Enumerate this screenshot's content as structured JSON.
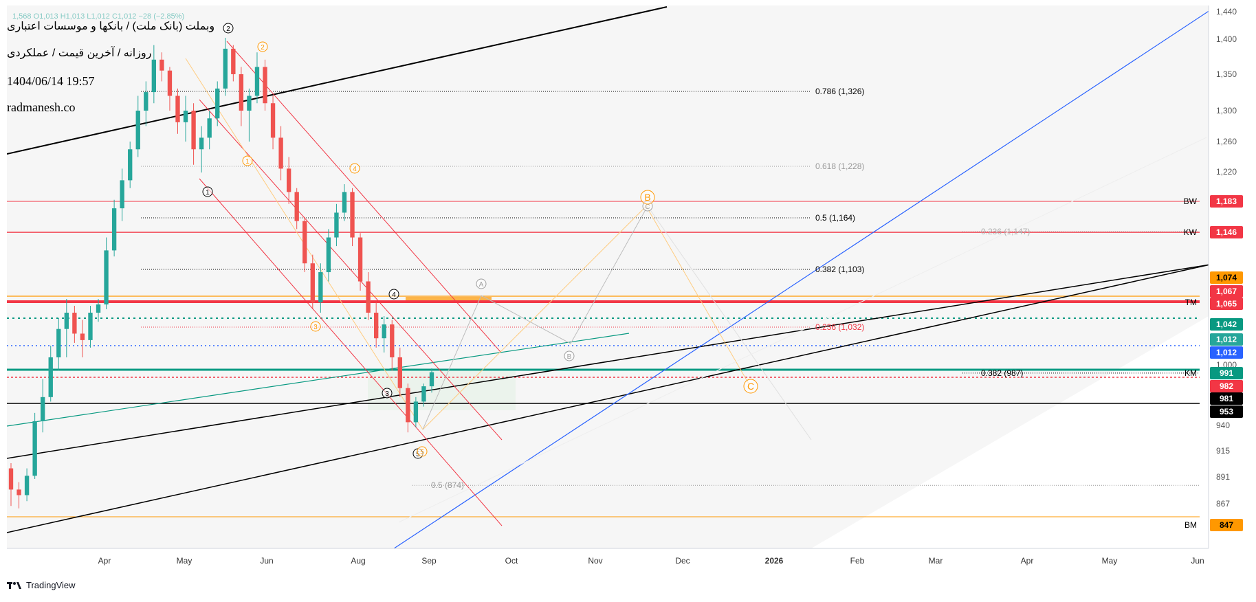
{
  "header": {
    "title": "وبملت (بانک ملت) / بانکها و موسسات اعتباری",
    "subtitle": "روزانه / آخرین قیمت / عملکردی",
    "datetime": "1404/06/14 19:57",
    "site": "radmanesh.co",
    "ohlc_faded": "1,568 O1,013 H1,013 L1,012 C1,012 −28 (−2.85%)"
  },
  "footer": {
    "brand": "TradingView"
  },
  "colors": {
    "up": "#26a69a",
    "down": "#ef5350",
    "orange": "#ff9800",
    "blue": "#2962ff",
    "teal": "#089981",
    "red": "#f23645",
    "black": "#000000"
  },
  "chart_data": {
    "type": "candlestick",
    "y_scale": "log",
    "ylim": [
      847,
      1440
    ],
    "price_ticks": [
      "1,440",
      "1,400",
      "1,350",
      "1,300",
      "1,260",
      "1,220",
      "1,000",
      "940",
      "915",
      "891",
      "867"
    ],
    "time_ticks": [
      "Apr",
      "May",
      "Jun",
      "Aug",
      "Sep",
      "Oct",
      "Nov",
      "Dec",
      "2026",
      "Feb",
      "Mar",
      "Apr",
      "May",
      "Jun"
    ],
    "price_badges": [
      {
        "label": "1,183",
        "color": "#f23645",
        "text": "#ffffff"
      },
      {
        "label": "1,146",
        "color": "#f23645",
        "text": "#ffffff"
      },
      {
        "label": "1,074",
        "color": "#ff9800",
        "text": "#000000"
      },
      {
        "label": "1,067",
        "color": "#f23645",
        "text": "#ffffff"
      },
      {
        "label": "1,065",
        "color": "#f23645",
        "text": "#ffffff"
      },
      {
        "label": "1,042",
        "color": "#089981",
        "text": "#ffffff"
      },
      {
        "label": "1,012",
        "color": "#26a69a",
        "text": "#ffffff"
      },
      {
        "label": "1,012",
        "color": "#2962ff",
        "text": "#ffffff"
      },
      {
        "label": "991",
        "color": "#089981",
        "text": "#ffffff"
      },
      {
        "label": "982",
        "color": "#f23645",
        "text": "#ffffff"
      },
      {
        "label": "981",
        "color": "#000000",
        "text": "#ffffff"
      },
      {
        "label": "953",
        "color": "#000000",
        "text": "#ffffff"
      },
      {
        "label": "847",
        "color": "#ff9800",
        "text": "#000000"
      }
    ],
    "level_labels": [
      {
        "label": "BW",
        "price": 1183
      },
      {
        "label": "KW",
        "price": 1146
      },
      {
        "label": "TM",
        "price": 1065
      },
      {
        "label": "KM",
        "price": 991
      },
      {
        "label": "BM",
        "price": 847
      }
    ],
    "fib_labels": [
      {
        "label": "0.786 (1,326)",
        "price": 1326,
        "color": "#000000"
      },
      {
        "label": "0.618 (1,228)",
        "price": 1228,
        "color": "#999999"
      },
      {
        "label": "0.5 (1,164)",
        "price": 1164,
        "color": "#000000"
      },
      {
        "label": "0.382 (1,103)",
        "price": 1103,
        "color": "#000000"
      },
      {
        "label": "0.236 (1,032)",
        "price": 1032,
        "color": "#f23645"
      },
      {
        "label": "0.236 (1,147)",
        "price": 1147,
        "color": "#b0b0b0"
      },
      {
        "label": "0.382 (987)",
        "price": 987,
        "color": "#000000"
      },
      {
        "label": "0.5 (874)",
        "price": 874,
        "color": "#999999"
      }
    ],
    "wave_labels": [
      "1",
      "2",
      "3",
      "4",
      "5",
      "A",
      "B",
      "C"
    ],
    "candles": [
      [
        890,
        895,
        856,
        870
      ],
      [
        870,
        877,
        854,
        865
      ],
      [
        865,
        890,
        860,
        883
      ],
      [
        883,
        944,
        880,
        936
      ],
      [
        936,
        980,
        925,
        960
      ],
      [
        960,
        1012,
        955,
        1000
      ],
      [
        1000,
        1042,
        990,
        1030
      ],
      [
        1030,
        1070,
        1000,
        1050
      ],
      [
        1050,
        1060,
        1015,
        1025
      ],
      [
        1025,
        1040,
        1000,
        1018
      ],
      [
        1018,
        1060,
        1010,
        1050
      ],
      [
        1050,
        1070,
        1038,
        1062
      ],
      [
        1062,
        1140,
        1055,
        1125
      ],
      [
        1125,
        1185,
        1118,
        1175
      ],
      [
        1175,
        1225,
        1160,
        1210
      ],
      [
        1210,
        1260,
        1200,
        1250
      ],
      [
        1250,
        1320,
        1240,
        1300
      ],
      [
        1300,
        1340,
        1280,
        1325
      ],
      [
        1325,
        1390,
        1310,
        1370
      ],
      [
        1370,
        1380,
        1340,
        1355
      ],
      [
        1355,
        1360,
        1300,
        1320
      ],
      [
        1320,
        1330,
        1270,
        1285
      ],
      [
        1285,
        1320,
        1260,
        1300
      ],
      [
        1300,
        1310,
        1230,
        1250
      ],
      [
        1250,
        1280,
        1220,
        1265
      ],
      [
        1265,
        1300,
        1250,
        1290
      ],
      [
        1290,
        1340,
        1280,
        1330
      ],
      [
        1330,
        1400,
        1320,
        1385
      ],
      [
        1385,
        1390,
        1340,
        1350
      ],
      [
        1350,
        1360,
        1280,
        1300
      ],
      [
        1300,
        1330,
        1260,
        1320
      ],
      [
        1320,
        1380,
        1310,
        1360
      ],
      [
        1360,
        1370,
        1300,
        1310
      ],
      [
        1310,
        1320,
        1250,
        1265
      ],
      [
        1265,
        1280,
        1210,
        1225
      ],
      [
        1225,
        1240,
        1180,
        1195
      ],
      [
        1195,
        1200,
        1150,
        1160
      ],
      [
        1160,
        1165,
        1100,
        1110
      ],
      [
        1110,
        1120,
        1055,
        1065
      ],
      [
        1065,
        1110,
        1050,
        1100
      ],
      [
        1100,
        1150,
        1090,
        1140
      ],
      [
        1140,
        1180,
        1130,
        1170
      ],
      [
        1170,
        1205,
        1160,
        1195
      ],
      [
        1195,
        1200,
        1130,
        1140
      ],
      [
        1140,
        1145,
        1080,
        1090
      ],
      [
        1090,
        1100,
        1040,
        1050
      ],
      [
        1050,
        1065,
        1010,
        1020
      ],
      [
        1020,
        1045,
        1005,
        1035
      ],
      [
        1035,
        1040,
        990,
        1000
      ],
      [
        1000,
        1010,
        960,
        970
      ],
      [
        970,
        975,
        925,
        935
      ],
      [
        935,
        960,
        930,
        955
      ],
      [
        955,
        975,
        950,
        972
      ],
      [
        972,
        992,
        965,
        988
      ]
    ]
  }
}
